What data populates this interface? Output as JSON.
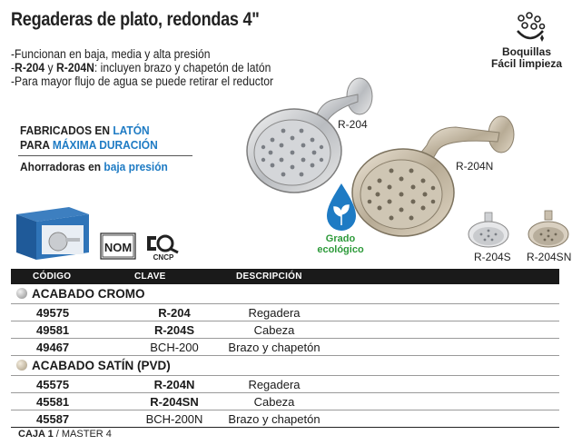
{
  "title": "Regaderas de plato, redondas 4\"",
  "bullets": [
    {
      "prefix": "-",
      "text": "Funcionan en baja, media y alta presión"
    },
    {
      "prefix": "-",
      "bold1": "R-204",
      "mid": " y ",
      "bold2": "R-204N",
      "rest": ": incluyen brazo y chapetón de latón"
    },
    {
      "prefix": "-",
      "text": "Para mayor flujo de agua se puede retirar el reductor"
    }
  ],
  "feature": {
    "line1_plain": "FABRICADOS EN ",
    "line1_accent": "LATÓN",
    "line2_plain": "PARA ",
    "line2_accent": "MÁXIMA DURACIÓN"
  },
  "saver": {
    "plain": "Ahorradoras en ",
    "accent": "baja presión"
  },
  "badges": {
    "boquillas_line1": "Boquillas",
    "boquillas_line2": "Fácil limpieza",
    "grado_line1": "Grado",
    "grado_line2": "ecológico",
    "nom": "NOM",
    "cncp": "CNCP"
  },
  "product_labels": {
    "r204": "R-204",
    "r204n": "R-204N",
    "r204s": "R-204S",
    "r204sn": "R-204SN"
  },
  "table": {
    "headers": {
      "code": "CÓDIGO",
      "clave": "CLAVE",
      "desc": "DESCRIPCIÓN"
    },
    "sections": [
      {
        "name": "ACABADO CROMO",
        "color": "#9a9a9a",
        "rows": [
          {
            "code": "49575",
            "clave": "R-204",
            "desc": "Regadera",
            "bold_clave": true
          },
          {
            "code": "49581",
            "clave": "R-204S",
            "desc": "Cabeza",
            "bold_clave": true
          },
          {
            "code": "49467",
            "clave": "BCH-200",
            "desc": "Brazo y chapetón",
            "bold_clave": false
          }
        ]
      },
      {
        "name": "ACABADO SATÍN (PVD)",
        "color": "#c9b89a",
        "rows": [
          {
            "code": "45575",
            "clave": "R-204N",
            "desc": "Regadera",
            "bold_clave": true
          },
          {
            "code": "45581",
            "clave": "R-204SN",
            "desc": "Cabeza",
            "bold_clave": true
          },
          {
            "code": "45587",
            "clave": "BCH-200N",
            "desc": "Brazo y chapetón",
            "bold_clave": false
          }
        ]
      }
    ]
  },
  "footer": {
    "caja_label": "CAJA 1",
    "sep": " / ",
    "master": "MASTER 4"
  },
  "colors": {
    "accent_blue": "#1e7bc4",
    "eco_green": "#2d9a3a",
    "header_bg": "#1a1a1a"
  }
}
